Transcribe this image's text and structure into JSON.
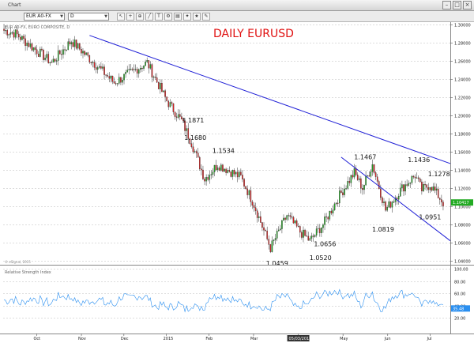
{
  "window": {
    "title": "Chart",
    "buttons": [
      "–",
      "□",
      "×"
    ]
  },
  "toolbar": {
    "symbol": "EUR A0-FX",
    "interval": "D",
    "icons": [
      "cursor-icon",
      "crosshair-icon",
      "zoom-icon",
      "draw-line-icon",
      "text-icon",
      "settings-icon",
      "print-icon",
      "twitter-icon",
      "star-icon",
      "tools-icon"
    ]
  },
  "chart_data": {
    "type": "candlestick",
    "title": "DAILY EURUSD",
    "subtitle": "EUR A0-FX, EURO COMPOSITE, D",
    "ylim": [
      1.04,
      1.3
    ],
    "y_ticks": [
      "1.30000",
      "1.28000",
      "1.26000",
      "1.24000",
      "1.22000",
      "1.20000",
      "1.18000",
      "1.16000",
      "1.14000",
      "1.12000",
      "1.10000",
      "1.08000",
      "1.06000",
      "1.04000"
    ],
    "last_price": "1.10417",
    "x_labels": [
      "Oct",
      "Nov",
      "Dec",
      "2015",
      "Feb",
      "Mar",
      "05/03/2015",
      "May",
      "Jun",
      "Jul"
    ],
    "annotations": [
      "1.1871",
      "1.1680",
      "1.1534",
      "1.1467",
      "1.1436",
      "1.1278",
      "1.0951",
      "1.0819",
      "1.0656",
      "1.0520",
      "1.0459"
    ],
    "colors": {
      "up": "#22aa22",
      "down": "#dd2222",
      "trend": "#1f1fd6",
      "title": "#e01010",
      "rsi": "#2a8ff0"
    },
    "indicator": {
      "name": "Relative Strength Index",
      "ylim": [
        0,
        100
      ],
      "y_ticks": [
        "100.00",
        "80.00",
        "60.00",
        "40.00",
        "20.00"
      ],
      "last_value": "35.48"
    }
  },
  "footer": {
    "source": "© eSignal, 2015"
  }
}
